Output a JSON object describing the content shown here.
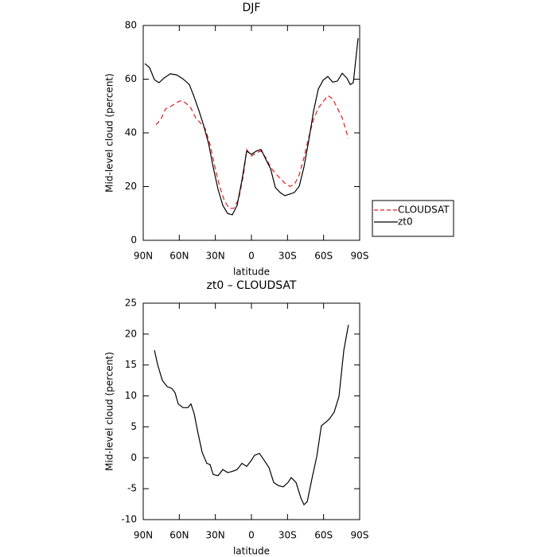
{
  "chart_data": [
    {
      "type": "line",
      "title": "DJF",
      "xlabel": "latitude",
      "ylabel": "Mid-level cloud (percent)",
      "xlim": [
        90,
        -90
      ],
      "xticks": [
        {
          "value": 90,
          "label": "90N"
        },
        {
          "value": 60,
          "label": "60N"
        },
        {
          "value": 30,
          "label": "30N"
        },
        0,
        {
          "value": -30,
          "label": "30S"
        },
        {
          "value": -60,
          "label": "60S"
        },
        {
          "value": -90,
          "label": "90S"
        }
      ],
      "ylim": [
        0,
        80
      ],
      "yticks": [
        0,
        20,
        40,
        60,
        80
      ],
      "legend": "outside-right",
      "series": [
        {
          "name": "CLOUDSAT",
          "color": "#e41a1c",
          "style": "dashed",
          "x": [
            79.4,
            75.4,
            71.5,
            66.2,
            62.2,
            58.2,
            54.3,
            50.3,
            46.3,
            42.3,
            38.4,
            34.4,
            30.4,
            26.5,
            22.5,
            18.5,
            14.6,
            10.6,
            6.6,
            4,
            0,
            -4,
            -8,
            -11.9,
            -15.9,
            -19.9,
            -23.8,
            -27.8,
            -31.8,
            -35.7,
            -39.7,
            -43.7,
            -47.7,
            -51.6,
            -55.6,
            -59.6,
            -63.5,
            -67.5,
            -71.5,
            -75.5,
            -80.7
          ],
          "values": [
            43,
            45,
            48.9,
            50.1,
            51.3,
            52.1,
            51,
            49.2,
            45.6,
            43.6,
            41.5,
            35.6,
            27.3,
            20.1,
            14.8,
            11.9,
            11.9,
            15.4,
            24.3,
            33.8,
            31.4,
            32.6,
            33.2,
            30.8,
            27.3,
            24.9,
            23.1,
            21.3,
            20.1,
            20.7,
            24.3,
            30.8,
            38.5,
            45,
            49.2,
            51.6,
            53.9,
            52.7,
            49.2,
            45.6,
            37.9
          ]
        },
        {
          "name": "zt0",
          "color": "#000000",
          "style": "solid",
          "x": [
            88.7,
            84.7,
            80.7,
            76.8,
            72.8,
            67.5,
            62.2,
            56.9,
            51.6,
            47.6,
            43.5,
            39.7,
            35.7,
            31.8,
            27.8,
            23.8,
            19.8,
            15.9,
            11.9,
            7.9,
            4,
            0,
            -4,
            -8,
            -11.9,
            -15.9,
            -19.9,
            -23.8,
            -27.8,
            -31.8,
            -35.7,
            -39.7,
            -43.7,
            -47.7,
            -51.6,
            -55.6,
            -59.6,
            -63.5,
            -67.5,
            -71.5,
            -75.5,
            -79.4,
            -82.1,
            -84.7,
            -88.7
          ],
          "values": [
            65.8,
            64.3,
            59.8,
            58.7,
            60.4,
            62,
            61.6,
            60.1,
            58,
            53.3,
            48,
            42.7,
            36.1,
            27.3,
            19,
            13,
            10,
            9.5,
            13,
            22.5,
            33.2,
            32,
            33.2,
            33.8,
            30.2,
            26.7,
            19.6,
            17.8,
            16.6,
            17.2,
            17.8,
            20.1,
            27.3,
            37.3,
            48,
            56.3,
            59.6,
            61,
            58.9,
            59.3,
            62.2,
            60.4,
            58,
            58.7,
            75.3
          ]
        }
      ]
    },
    {
      "type": "line",
      "title": "zt0 – CLOUDSAT",
      "xlabel": "latitude",
      "ylabel": "Mid-level cloud (percent)",
      "xlim": [
        90,
        -90
      ],
      "xticks": [
        {
          "value": 90,
          "label": "90N"
        },
        {
          "value": 60,
          "label": "60N"
        },
        {
          "value": 30,
          "label": "30N"
        },
        0,
        {
          "value": -30,
          "label": "30S"
        },
        {
          "value": -60,
          "label": "60S"
        },
        {
          "value": -90,
          "label": "90S"
        }
      ],
      "ylim": [
        -10,
        25
      ],
      "yticks": [
        -10,
        -5,
        0,
        5,
        10,
        15,
        20,
        25
      ],
      "series": [
        {
          "color": "#000000",
          "style": "solid",
          "x": [
            80.7,
            78.1,
            74.1,
            70.1,
            66.2,
            63.5,
            60.9,
            56.9,
            52.9,
            50.3,
            47.6,
            45,
            41,
            37.1,
            34.4,
            31.8,
            27.8,
            23.8,
            19.8,
            15.9,
            11.9,
            7.9,
            4,
            0,
            -2.6,
            -6.6,
            -10.6,
            -14.6,
            -18.5,
            -22.5,
            -26.5,
            -30.4,
            -33.1,
            -37.1,
            -41.1,
            -43.7,
            -46.4,
            -50.3,
            -54.3,
            -58.2,
            -62.2,
            -64.9,
            -68.8,
            -72.8,
            -76.8,
            -80.7
          ],
          "values": [
            17.4,
            15.1,
            12.5,
            11.5,
            11.2,
            10.5,
            8.7,
            8.1,
            8.1,
            8.7,
            7.1,
            4.5,
            0.9,
            -0.9,
            -1.1,
            -2.7,
            -2.9,
            -1.9,
            -2.4,
            -2.2,
            -1.9,
            -0.9,
            -1.4,
            -0.4,
            0.4,
            0.7,
            -0.4,
            -1.6,
            -4,
            -4.5,
            -4.7,
            -4,
            -3.2,
            -4,
            -6.5,
            -7.6,
            -7.1,
            -3.4,
            0.2,
            5.2,
            5.8,
            6.3,
            7.4,
            9.9,
            17.4,
            21.5
          ]
        }
      ]
    }
  ]
}
